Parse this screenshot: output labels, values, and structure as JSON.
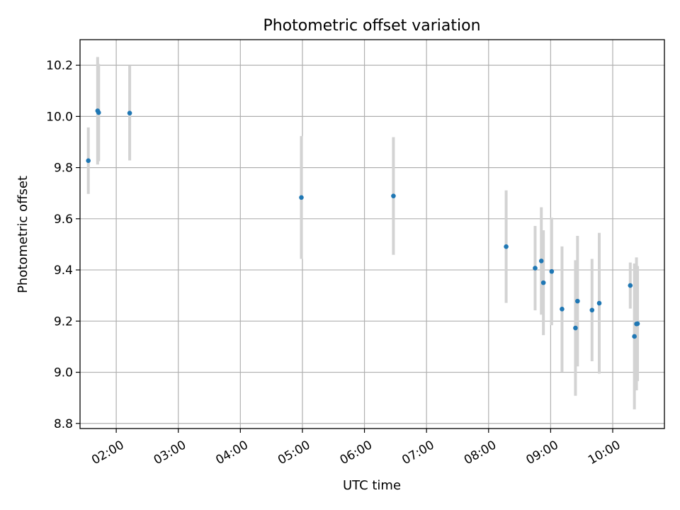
{
  "chart_data": {
    "type": "scatter",
    "title": "Photometric offset variation",
    "xlabel": "UTC time",
    "ylabel": "Photometric offset",
    "x_unit": "UTC time (HH:MM)",
    "xlim": [
      "01:25",
      "10:50"
    ],
    "ylim": [
      8.78,
      10.3
    ],
    "x_ticks": [
      "02:00",
      "03:00",
      "04:00",
      "05:00",
      "06:00",
      "07:00",
      "08:00",
      "09:00",
      "10:00"
    ],
    "y_ticks": [
      "8.8",
      "9.0",
      "9.2",
      "9.4",
      "9.6",
      "9.8",
      "10.0",
      "10.2"
    ],
    "grid": true,
    "colors": {
      "point": "#1f77b4",
      "error_bar": "#d3d3d3",
      "grid": "#b0b0b0",
      "axes": "#000000"
    },
    "series": [
      {
        "points": [
          {
            "t": "01:33",
            "y": 9.827,
            "yerr": 0.13
          },
          {
            "t": "01:42",
            "y": 10.022,
            "yerr": 0.21
          },
          {
            "t": "01:43",
            "y": 10.015,
            "yerr": 0.19
          },
          {
            "t": "02:13",
            "y": 10.013,
            "yerr": 0.185
          },
          {
            "t": "04:59",
            "y": 9.683,
            "yerr": 0.24
          },
          {
            "t": "06:28",
            "y": 9.689,
            "yerr": 0.23
          },
          {
            "t": "08:17",
            "y": 9.491,
            "yerr": 0.22
          },
          {
            "t": "08:45",
            "y": 9.407,
            "yerr": 0.165
          },
          {
            "t": "08:51",
            "y": 9.435,
            "yerr": 0.21
          },
          {
            "t": "08:53",
            "y": 9.35,
            "yerr": 0.205
          },
          {
            "t": "09:01",
            "y": 9.394,
            "yerr": 0.21
          },
          {
            "t": "09:11",
            "y": 9.247,
            "yerr": 0.245
          },
          {
            "t": "09:24",
            "y": 9.173,
            "yerr": 0.265
          },
          {
            "t": "09:26",
            "y": 9.278,
            "yerr": 0.255
          },
          {
            "t": "09:40",
            "y": 9.243,
            "yerr": 0.2
          },
          {
            "t": "09:47",
            "y": 9.27,
            "yerr": 0.275
          },
          {
            "t": "10:17",
            "y": 9.339,
            "yerr": 0.09
          },
          {
            "t": "10:21",
            "y": 9.14,
            "yerr": 0.285
          },
          {
            "t": "10:23",
            "y": 9.189,
            "yerr": 0.26
          },
          {
            "t": "10:24",
            "y": 9.19,
            "yerr": 0.225
          }
        ]
      }
    ]
  }
}
